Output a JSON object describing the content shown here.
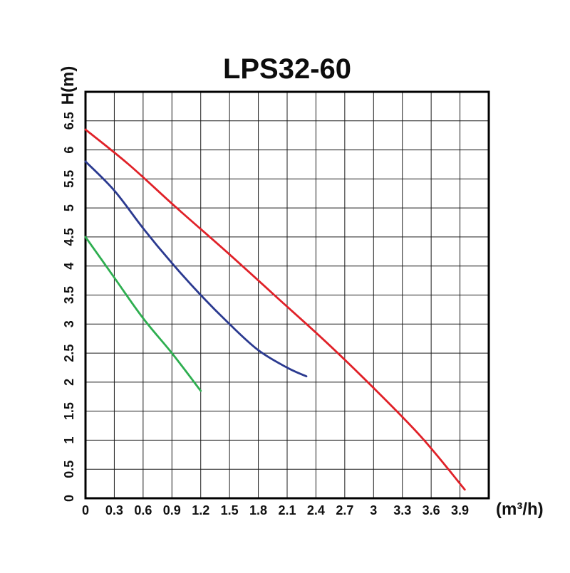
{
  "title": "LPS32-60",
  "colors": {
    "red": "#e02128",
    "blue": "#2b3a90",
    "green": "#2eae50",
    "grid": "#1c1c1c",
    "frame": "#000000",
    "text": "#111111"
  },
  "chart_data": {
    "type": "line",
    "title": "LPS32-60",
    "xlabel": "(m³/h)",
    "ylabel": "H(m)",
    "xlim": [
      0,
      4.2
    ],
    "ylim": [
      0,
      7.0
    ],
    "grid": true,
    "x_tick_step": 0.3,
    "y_tick_step": 0.5,
    "x_tick_labels": [
      "0",
      "0.3",
      "0.6",
      "0.9",
      "1.2",
      "1.5",
      "1.8",
      "2.1",
      "2.4",
      "2.7",
      "3",
      "3.3",
      "3.6",
      "3.9"
    ],
    "y_tick_labels": [
      "0",
      "0.5",
      "1",
      "1.5",
      "2",
      "2.5",
      "3",
      "3.5",
      "4",
      "4.5",
      "5",
      "5.5",
      "6",
      "6.5"
    ],
    "series": [
      {
        "name": "curve-red",
        "color": "#e02128",
        "points": [
          [
            0,
            6.35
          ],
          [
            0.45,
            5.75
          ],
          [
            0.95,
            5.0
          ],
          [
            1.5,
            4.2
          ],
          [
            2.0,
            3.45
          ],
          [
            2.5,
            2.7
          ],
          [
            3.0,
            1.9
          ],
          [
            3.5,
            1.05
          ],
          [
            3.95,
            0.15
          ]
        ]
      },
      {
        "name": "curve-blue",
        "color": "#2b3a90",
        "points": [
          [
            0,
            5.8
          ],
          [
            0.3,
            5.3
          ],
          [
            0.6,
            4.65
          ],
          [
            0.9,
            4.05
          ],
          [
            1.2,
            3.5
          ],
          [
            1.5,
            3.0
          ],
          [
            1.8,
            2.55
          ],
          [
            2.1,
            2.25
          ],
          [
            2.3,
            2.1
          ]
        ]
      },
      {
        "name": "curve-green",
        "color": "#2eae50",
        "points": [
          [
            0,
            4.5
          ],
          [
            0.3,
            3.8
          ],
          [
            0.6,
            3.1
          ],
          [
            0.9,
            2.5
          ],
          [
            1.2,
            1.85
          ]
        ]
      }
    ]
  }
}
